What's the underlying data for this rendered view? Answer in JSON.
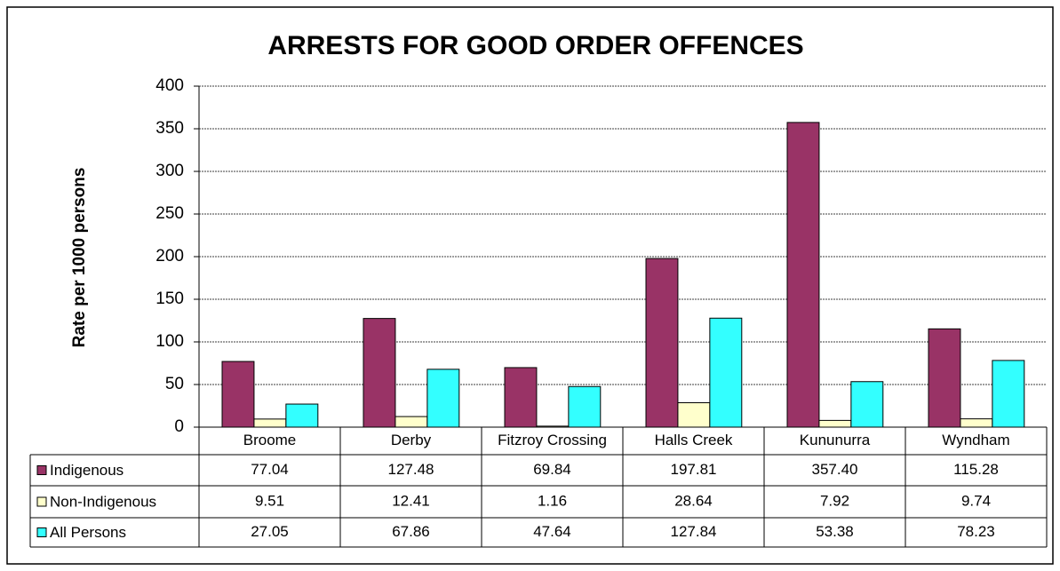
{
  "chart_data": {
    "type": "bar",
    "title": "ARRESTS FOR  GOOD ORDER OFFENCES",
    "y_label": "Rate per 1000 persons",
    "categories": [
      "Broome",
      "Derby",
      "Fitzroy Crossing",
      "Halls Creek",
      "Kununurra",
      "Wyndham"
    ],
    "series": [
      {
        "name": "Indigenous",
        "color": "#993366",
        "values": [
          77.04,
          127.48,
          69.84,
          197.81,
          357.4,
          115.28
        ],
        "value_labels": [
          "77.04",
          "127.48",
          "69.84",
          "197.81",
          "357.40",
          "115.28"
        ]
      },
      {
        "name": "Non-Indigenous",
        "color": "#FFFFCC",
        "values": [
          9.51,
          12.41,
          1.16,
          28.64,
          7.92,
          9.74
        ],
        "value_labels": [
          "9.51",
          "12.41",
          "1.16",
          "28.64",
          "7.92",
          "9.74"
        ]
      },
      {
        "name": "All Persons",
        "color": "#33FFFF",
        "values": [
          27.05,
          67.86,
          47.64,
          127.84,
          53.38,
          78.23
        ],
        "value_labels": [
          "27.05",
          "67.86",
          "47.64",
          "127.84",
          "53.38",
          "78.23"
        ]
      }
    ],
    "ylim": [
      0,
      400
    ],
    "yticks": [
      0,
      50,
      100,
      150,
      200,
      250,
      300,
      350,
      400
    ],
    "grid": true
  }
}
